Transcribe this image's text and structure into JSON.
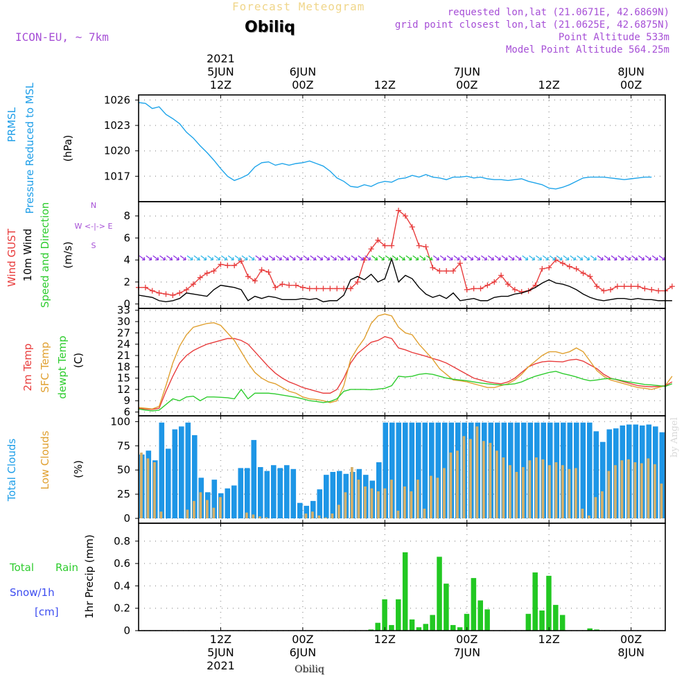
{
  "header": {
    "product": "Forecast Meteogram",
    "station": "Obiliq",
    "model": "ICON-EU, ~ 7km",
    "requested": "requested lon,lat (21.0671E, 42.6869N)",
    "gridpoint": "grid point closest lon,lat (21.0625E, 42.6875N)",
    "point_altitude": "Point Altitude 533m",
    "model_altitude": "Model Point Altitude 564.25m",
    "watermark": "by Angel",
    "footer": "Obiliq"
  },
  "time_axis": {
    "top_labels": [
      [
        "2021",
        "5JUN",
        "12Z"
      ],
      [
        "6JUN",
        "00Z"
      ],
      [
        "12Z"
      ],
      [
        "7JUN",
        "00Z"
      ],
      [
        "12Z"
      ],
      [
        "8JUN",
        "00Z"
      ]
    ],
    "bottom_labels": [
      [
        "12Z",
        "5JUN",
        "2021"
      ],
      [
        "00Z",
        "6JUN"
      ],
      [
        "12Z"
      ],
      [
        "00Z",
        "7JUN"
      ],
      [
        "12Z"
      ],
      [
        "00Z",
        "8JUN"
      ]
    ],
    "tick_hours": [
      12,
      24,
      36,
      48,
      60,
      72
    ],
    "start_hour": 0,
    "end_hour": 77
  },
  "chart_data": [
    {
      "type": "line",
      "name": "pressure",
      "ylabels": [
        "PRMSL",
        "Pressure Reduced to MSL",
        "(hPa)"
      ],
      "ylim": [
        1014,
        1026.6
      ],
      "yticks": [
        1017,
        1020,
        1023,
        1026
      ],
      "grid": true,
      "series": [
        {
          "name": "PRMSL",
          "color": "#1ea4ea",
          "values": [
            1025.7,
            1025.6,
            1025.0,
            1025.2,
            1024.3,
            1023.8,
            1023.2,
            1022.2,
            1021.5,
            1020.6,
            1019.8,
            1018.9,
            1017.9,
            1017.0,
            1016.5,
            1016.8,
            1017.2,
            1018.1,
            1018.6,
            1018.7,
            1018.3,
            1018.5,
            1018.3,
            1018.5,
            1018.6,
            1018.8,
            1018.5,
            1018.2,
            1017.6,
            1016.8,
            1016.4,
            1015.8,
            1015.7,
            1016.0,
            1015.8,
            1016.2,
            1016.4,
            1016.3,
            1016.7,
            1016.8,
            1017.1,
            1016.9,
            1017.2,
            1016.9,
            1016.8,
            1016.6,
            1016.9,
            1016.9,
            1017.0,
            1016.8,
            1016.9,
            1016.7,
            1016.6,
            1016.6,
            1016.5,
            1016.6,
            1016.7,
            1016.4,
            1016.2,
            1016.0,
            1015.6,
            1015.5,
            1015.7,
            1016.0,
            1016.4,
            1016.8,
            1016.9,
            1016.9,
            1016.9,
            1016.8,
            1016.7,
            1016.6,
            1016.7,
            1016.8,
            1016.9,
            1016.9
          ]
        }
      ]
    },
    {
      "type": "line",
      "name": "wind",
      "ylabels": [
        "Wind GUST",
        "10m Wind",
        "Speed and Direction",
        "(m/s)"
      ],
      "compass": [
        "N",
        "W <-|-> E",
        "S"
      ],
      "ylim": [
        -0.4,
        9.3
      ],
      "yticks": [
        0,
        2,
        4,
        6,
        8
      ],
      "grid": true,
      "series": [
        {
          "name": "Wind GUST",
          "color": "#e83c3c",
          "values": [
            1.5,
            1.5,
            1.2,
            1.0,
            0.9,
            0.8,
            1.0,
            1.3,
            1.8,
            2.4,
            2.8,
            3.0,
            3.6,
            3.5,
            3.5,
            3.9,
            2.5,
            2.1,
            3.1,
            2.9,
            1.5,
            1.8,
            1.7,
            1.7,
            1.5,
            1.4,
            1.4,
            1.4,
            1.4,
            1.4,
            1.4,
            1.4,
            2.0,
            4.0,
            5.0,
            5.8,
            5.3,
            5.3,
            8.5,
            8.0,
            7.0,
            5.3,
            5.2,
            3.3,
            3.0,
            3.0,
            3.0,
            3.7,
            1.3,
            1.4,
            1.4,
            1.7,
            2.0,
            2.6,
            1.8,
            1.3,
            1.1,
            1.2,
            1.7,
            3.2,
            3.3,
            4.0,
            3.7,
            3.4,
            3.2,
            2.8,
            2.5,
            1.6,
            1.2,
            1.3,
            1.6,
            1.6,
            1.6,
            1.6,
            1.4,
            1.3,
            1.2,
            1.2,
            1.6
          ]
        },
        {
          "name": "10m Wind",
          "color": "#000000",
          "values": [
            0.8,
            0.7,
            0.6,
            0.3,
            0.2,
            0.3,
            0.5,
            1.0,
            0.9,
            0.8,
            0.7,
            1.3,
            1.7,
            1.6,
            1.5,
            1.3,
            0.3,
            0.7,
            0.5,
            0.7,
            0.6,
            0.4,
            0.4,
            0.4,
            0.5,
            0.4,
            0.5,
            0.2,
            0.3,
            0.3,
            0.8,
            2.2,
            2.5,
            2.2,
            2.7,
            2.0,
            2.3,
            4.1,
            2.0,
            2.6,
            2.3,
            1.5,
            0.9,
            0.6,
            0.8,
            0.5,
            1.0,
            0.3,
            0.4,
            0.5,
            0.3,
            0.3,
            0.6,
            0.7,
            0.7,
            0.9,
            1.0,
            1.2,
            1.5,
            1.9,
            2.2,
            1.9,
            1.8,
            1.6,
            1.3,
            0.9,
            0.6,
            0.4,
            0.3,
            0.4,
            0.5,
            0.5,
            0.4,
            0.5,
            0.4,
            0.4,
            0.3,
            0.3,
            0.3
          ]
        }
      ]
    },
    {
      "type": "line",
      "name": "temperature",
      "ylabels": [
        "2m Temp",
        "SFC Temp",
        "dewpt Temp",
        "(C)"
      ],
      "ylim": [
        5,
        33.5
      ],
      "yticks": [
        6,
        9,
        12,
        15,
        18,
        21,
        24,
        27,
        30,
        33
      ],
      "grid": true,
      "series": [
        {
          "name": "2m Temp",
          "color": "#e83c3c",
          "values": [
            7.0,
            6.8,
            6.7,
            7.0,
            11.5,
            15.5,
            19.0,
            21.0,
            22.3,
            23.2,
            24.0,
            24.5,
            25.0,
            25.5,
            25.5,
            25.0,
            24.0,
            22.0,
            20.0,
            18.0,
            16.3,
            15.0,
            14.0,
            13.3,
            12.5,
            12.0,
            11.5,
            11.0,
            11.0,
            12.0,
            15.0,
            19.0,
            21.5,
            23.0,
            24.5,
            25.0,
            26.0,
            25.5,
            23.0,
            22.5,
            21.8,
            21.3,
            20.8,
            20.2,
            19.7,
            19.0,
            18.0,
            17.0,
            16.0,
            15.0,
            14.5,
            14.0,
            13.7,
            13.5,
            14.0,
            15.0,
            16.5,
            18.0,
            18.8,
            19.3,
            19.5,
            19.4,
            19.3,
            19.8,
            20.0,
            19.5,
            18.5,
            17.5,
            16.0,
            15.0,
            14.5,
            14.0,
            13.5,
            13.0,
            12.8,
            12.7,
            12.8,
            13.0,
            14.0
          ]
        },
        {
          "name": "SFC Temp",
          "color": "#e0a030",
          "values": [
            7.2,
            7.0,
            6.8,
            7.5,
            13.0,
            19.0,
            23.5,
            26.5,
            28.5,
            29.0,
            29.5,
            29.7,
            29.0,
            27.0,
            25.0,
            22.0,
            19.0,
            16.5,
            15.0,
            14.0,
            13.5,
            12.5,
            11.5,
            11.0,
            10.0,
            9.5,
            9.3,
            9.0,
            8.5,
            9.0,
            13.0,
            20.0,
            23.0,
            25.5,
            29.5,
            31.5,
            32.0,
            31.5,
            28.5,
            27.0,
            26.5,
            24.0,
            22.0,
            20.0,
            17.5,
            16.0,
            14.5,
            14.3,
            14.0,
            13.5,
            13.0,
            12.5,
            12.5,
            13.0,
            13.5,
            14.5,
            16.0,
            18.0,
            19.5,
            21.0,
            22.0,
            22.0,
            21.5,
            22.0,
            23.0,
            22.0,
            19.5,
            17.0,
            15.5,
            14.5,
            14.0,
            13.5,
            13.0,
            12.5,
            12.3,
            12.0,
            12.5,
            13.0,
            15.5
          ]
        },
        {
          "name": "dewpt Temp",
          "color": "#2ecc2e",
          "values": [
            6.8,
            6.5,
            6.3,
            6.5,
            8.0,
            9.5,
            9.0,
            10.0,
            10.2,
            9.0,
            10.0,
            10.0,
            9.9,
            9.8,
            9.5,
            12.0,
            9.5,
            11.0,
            11.0,
            11.0,
            10.8,
            10.5,
            10.2,
            9.9,
            9.5,
            9.0,
            8.8,
            8.5,
            8.8,
            9.5,
            11.5,
            12.0,
            12.0,
            12.0,
            11.9,
            12.1,
            12.3,
            13.0,
            15.5,
            15.3,
            15.5,
            16.0,
            16.2,
            16.0,
            15.5,
            15.0,
            14.7,
            14.5,
            14.3,
            14.0,
            13.7,
            13.5,
            13.3,
            13.2,
            13.3,
            13.5,
            14.0,
            14.8,
            15.5,
            16.0,
            16.5,
            16.8,
            16.2,
            15.8,
            15.3,
            14.7,
            14.3,
            14.5,
            14.8,
            14.9,
            14.6,
            14.2,
            13.9,
            13.6,
            13.3,
            13.2,
            13.0,
            12.8,
            13.5
          ]
        }
      ]
    },
    {
      "type": "bar",
      "name": "clouds",
      "ylabels": [
        "Total Clouds",
        "Low Clouds",
        "(%)"
      ],
      "ylim": [
        -5,
        106
      ],
      "yticks": [
        0,
        25,
        50,
        75,
        100
      ],
      "grid": true,
      "series": [
        {
          "name": "Total Clouds",
          "color": "#1e96e6",
          "values": [
            66,
            70,
            60,
            99,
            72,
            92,
            95,
            99,
            86,
            42,
            27,
            40,
            26,
            31,
            34,
            52,
            52,
            81,
            53,
            49,
            55,
            52,
            55,
            51,
            16,
            13,
            18,
            30,
            45,
            48,
            49,
            46,
            48,
            51,
            45,
            39,
            58,
            99,
            99,
            99,
            99,
            99,
            99,
            99,
            99,
            99,
            99,
            99,
            99,
            99,
            99,
            99,
            99,
            99,
            99,
            99,
            99,
            99,
            99,
            99,
            99,
            99,
            99,
            99,
            99,
            99,
            99,
            99,
            99,
            90,
            79,
            92,
            93,
            96,
            97,
            97,
            96,
            97,
            95,
            89
          ]
        },
        {
          "name": "Low Clouds",
          "color": "#d4b06a",
          "values": [
            68,
            62,
            58,
            7,
            0,
            0,
            0,
            9,
            18,
            27,
            19,
            11,
            22,
            0,
            0,
            0,
            6,
            4,
            2,
            1,
            0,
            0,
            0,
            0,
            0,
            5,
            7,
            3,
            1,
            5,
            14,
            27,
            53,
            40,
            33,
            31,
            28,
            31,
            40,
            8,
            33,
            28,
            40,
            10,
            44,
            42,
            52,
            68,
            70,
            85,
            82,
            95,
            80,
            78,
            70,
            63,
            55,
            48,
            53,
            60,
            63,
            61,
            55,
            58,
            55,
            51,
            52,
            10,
            3,
            22,
            28,
            49,
            55,
            60,
            61,
            58,
            57,
            62,
            56,
            36
          ]
        }
      ]
    },
    {
      "type": "bar",
      "name": "precip",
      "ylabels": [
        "Total",
        "Rain",
        "Snow/1h",
        "[cm]",
        "1hr Precip (mm)"
      ],
      "ylim": [
        0,
        0.96
      ],
      "yticks": [
        0,
        0.2,
        0.4,
        0.6,
        0.8
      ],
      "ytick_labels": [
        "0",
        "0.2",
        "0.4",
        "0.6",
        "0.8"
      ],
      "grid": true,
      "series": [
        {
          "name": "Rain",
          "color": "#22c822",
          "hours": [
            34,
            35,
            36,
            37,
            38,
            39,
            40,
            41,
            42,
            43,
            44,
            45,
            46,
            47,
            48,
            49,
            50,
            51,
            52,
            53,
            57,
            58,
            59,
            60,
            61,
            62,
            66,
            67
          ],
          "values": [
            0.01,
            0.07,
            0.28,
            0.05,
            0.28,
            0.7,
            0.1,
            0.03,
            0.06,
            0.14,
            0.66,
            0.42,
            0.05,
            0.03,
            0.15,
            0.47,
            0.27,
            0.19,
            0,
            0,
            0.15,
            0.52,
            0.18,
            0.49,
            0.23,
            0.14,
            0.02,
            0.01
          ]
        }
      ]
    }
  ]
}
